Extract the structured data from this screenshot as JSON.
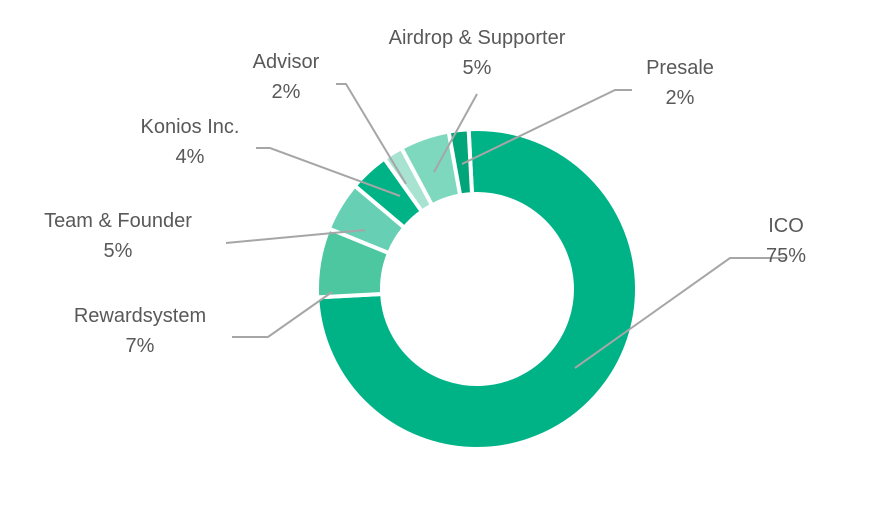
{
  "chart_data": {
    "type": "donut",
    "title": "",
    "legend": "none",
    "slices": [
      {
        "label": "ICO",
        "pct_label": "75%",
        "value": 75,
        "color": "#00b386"
      },
      {
        "label": "Rewardsystem",
        "pct_label": "7%",
        "value": 7,
        "color": "#4dc7a0"
      },
      {
        "label": "Team & Founder",
        "pct_label": "5%",
        "value": 5,
        "color": "#66cfb4"
      },
      {
        "label": "Konios Inc.",
        "pct_label": "4%",
        "value": 4,
        "color": "#00b386"
      },
      {
        "label": "Advisor",
        "pct_label": "2%",
        "value": 2,
        "color": "#a8e3d2"
      },
      {
        "label": "Airdrop & Supporter",
        "pct_label": "5%",
        "value": 5,
        "color": "#7ed8bd"
      },
      {
        "label": "Presale",
        "pct_label": "2%",
        "value": 2,
        "color": "#00a57a"
      }
    ]
  }
}
